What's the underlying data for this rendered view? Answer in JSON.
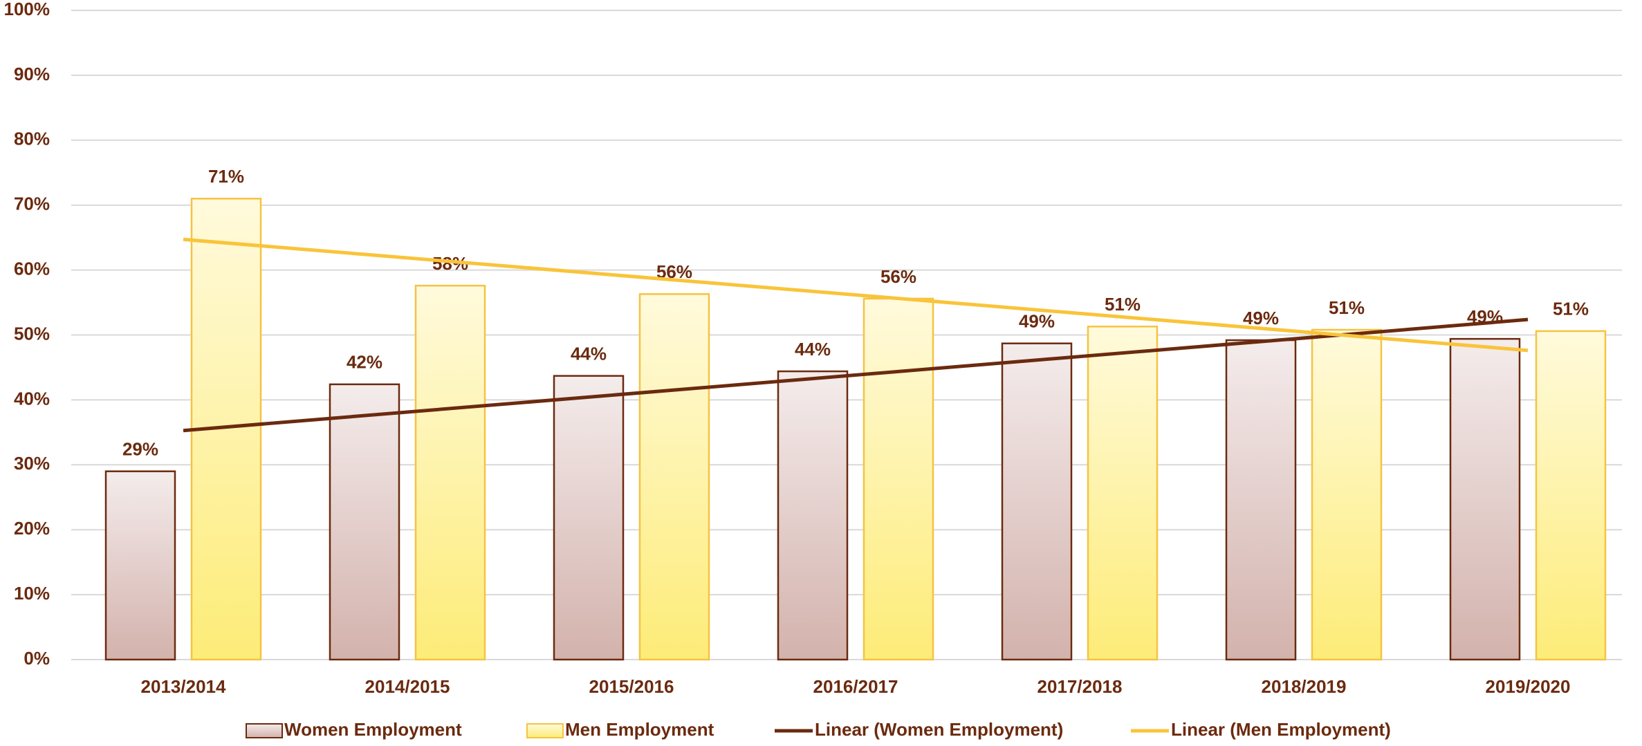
{
  "chart_data": {
    "type": "bar",
    "categories": [
      "2013/2014",
      "2014/2015",
      "2015/2016",
      "2016/2017",
      "2017/2018",
      "2018/2019",
      "2019/2020"
    ],
    "series": [
      {
        "name": "Women Employment",
        "color": "#6b2a0f",
        "fill_top": "#f4ecec",
        "fill_bottom": "#d3b2ac",
        "values": [
          29,
          42.4,
          43.7,
          44.4,
          48.7,
          49.2,
          49.4
        ],
        "value_labels": [
          "29%",
          "42%",
          "44%",
          "44%",
          "49%",
          "49%",
          "49%"
        ],
        "trendline": {
          "type": "linear",
          "name": "Linear (Women Employment)",
          "color": "#6b2a0f"
        }
      },
      {
        "name": "Men Employment",
        "color": "#f5c342",
        "fill_top": "#fffadc",
        "fill_bottom": "#fdec78",
        "values": [
          71,
          57.6,
          56.3,
          55.6,
          51.3,
          50.8,
          50.6
        ],
        "value_labels": [
          "71%",
          "58%",
          "56%",
          "56%",
          "51%",
          "51%",
          "51%"
        ],
        "trendline": {
          "type": "linear",
          "name": "Linear (Men Employment)",
          "color": "#f9c43a"
        }
      }
    ],
    "ylim": [
      0,
      100
    ],
    "yticks": [
      {
        "value": 0,
        "label": "0%"
      },
      {
        "value": 10,
        "label": "10%"
      },
      {
        "value": 20,
        "label": "20%"
      },
      {
        "value": 30,
        "label": "30%"
      },
      {
        "value": 40,
        "label": "40%"
      },
      {
        "value": 50,
        "label": "50%"
      },
      {
        "value": 60,
        "label": "60%"
      },
      {
        "value": 70,
        "label": "70%"
      },
      {
        "value": 80,
        "label": "80%"
      },
      {
        "value": 90,
        "label": "90%"
      },
      {
        "value": 100,
        "label": "100%"
      }
    ],
    "grid": true,
    "legend": "bottom"
  }
}
